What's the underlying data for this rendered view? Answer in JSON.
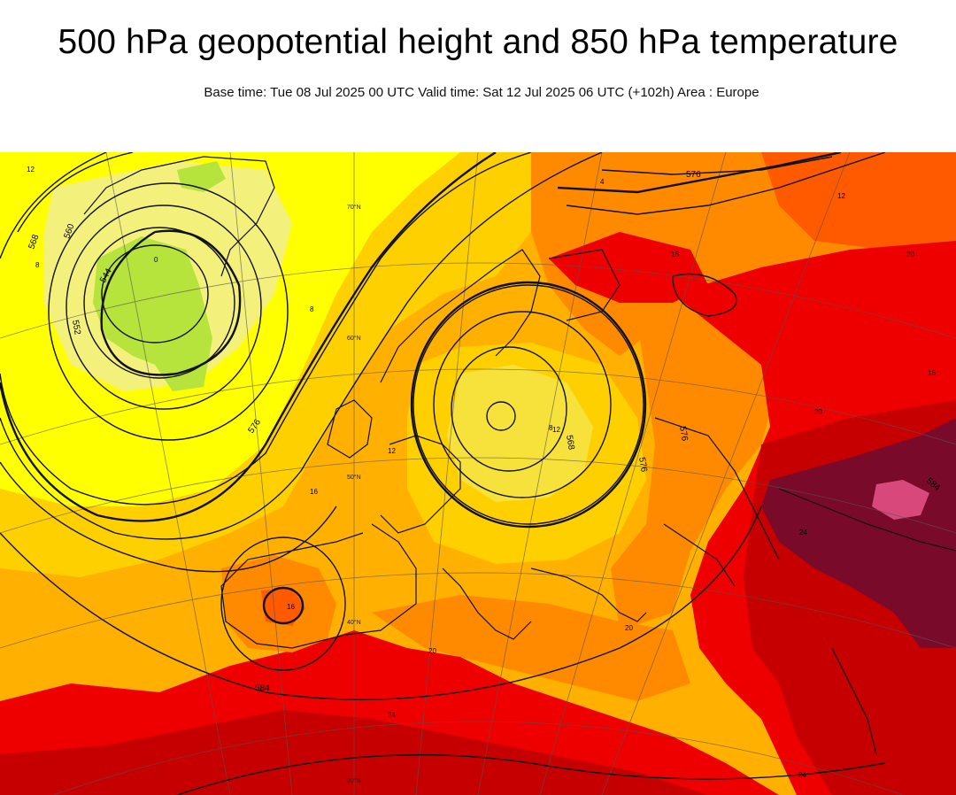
{
  "header": {
    "title": "500 hPa geopotential height and 850 hPa temperature",
    "subtitle": "Base time: Tue 08 Jul 2025 00 UTC Valid time: Sat 12 Jul 2025 06 UTC (+102h) Area : Europe"
  },
  "colors": {
    "lightgreen": "#b6e33c",
    "palegreen": "#d6ec7a",
    "yellow_pale": "#f4f07c",
    "yellow": "#ffff00",
    "yellow_orange": "#ffd000",
    "orange_light": "#ffb000",
    "orange": "#ff8a00",
    "orange_red": "#ff5a00",
    "red": "#ee0000",
    "dark_red": "#c60000",
    "maroon": "#7a0a2a",
    "pink": "#d8487a",
    "contour": "#111111"
  },
  "map": {
    "contour_labels": [
      "576",
      "568",
      "560",
      "552",
      "544",
      "584",
      "576",
      "568",
      "576",
      "584",
      "576"
    ],
    "temperature_labels": [
      "12",
      "4",
      "8",
      "0",
      "16",
      "12",
      "16",
      "20",
      "20",
      "24",
      "24",
      "24",
      "16",
      "20",
      "16",
      "12",
      "8",
      "8",
      "12",
      "20"
    ],
    "latitude_labels": [
      "70°N",
      "60°N",
      "50°N",
      "40°N",
      "30°N"
    ]
  }
}
